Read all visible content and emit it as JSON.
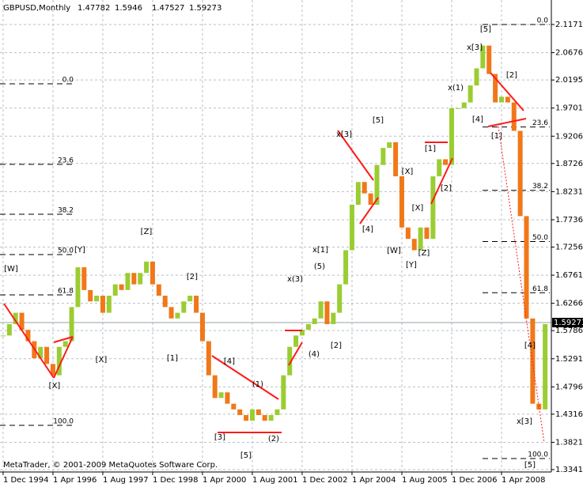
{
  "chart_data": {
    "type": "candlestick",
    "title": "GBPUSD,Monthly",
    "ohlc": [
      1.47782,
      1.5946,
      1.47527,
      1.59273
    ],
    "footer": "MetaTrader, © 2001-2009 MetaQuotes Software Corp.",
    "x": [
      "1994-12-01",
      "1995-02-01",
      "1995-04-01",
      "1995-06-01",
      "1995-08-01",
      "1995-10-01",
      "1995-12-01",
      "1996-02-01",
      "1996-04-01",
      "1996-06-01",
      "1996-08-01",
      "1996-10-01",
      "1996-12-01",
      "1997-02-01",
      "1997-04-01",
      "1997-06-01",
      "1997-08-01",
      "1997-10-01",
      "1997-12-01",
      "1998-02-01",
      "1998-04-01",
      "1998-06-01",
      "1998-08-01",
      "1998-10-01",
      "1998-12-01",
      "1999-02-01",
      "1999-04-01",
      "1999-06-01",
      "1999-08-01",
      "1999-10-01",
      "1999-12-01",
      "2000-02-01",
      "2000-04-01",
      "2000-06-01",
      "2000-08-01",
      "2000-10-01",
      "2000-12-01",
      "2001-02-01",
      "2001-04-01",
      "2001-06-01",
      "2001-08-01",
      "2001-10-01",
      "2001-12-01",
      "2002-02-01",
      "2002-04-01",
      "2002-06-01",
      "2002-08-01",
      "2002-10-01",
      "2002-12-01",
      "2003-02-01",
      "2003-04-01",
      "2003-06-01",
      "2003-08-01",
      "2003-10-01",
      "2003-12-01",
      "2004-02-01",
      "2004-04-01",
      "2004-06-01",
      "2004-08-01",
      "2004-10-01",
      "2004-12-01",
      "2005-02-01",
      "2005-04-01",
      "2005-06-01",
      "2005-08-01",
      "2005-10-01",
      "2005-12-01",
      "2006-02-01",
      "2006-04-01",
      "2006-06-01",
      "2006-08-01",
      "2006-10-01",
      "2006-12-01",
      "2007-02-01",
      "2007-04-01",
      "2007-06-01",
      "2007-08-01",
      "2007-10-01",
      "2007-12-01",
      "2008-02-01",
      "2008-04-01",
      "2008-06-01",
      "2008-08-01",
      "2008-10-01",
      "2008-12-01",
      "2009-02-01",
      "2009-04-01",
      "2009-06-01"
    ],
    "values": [
      1.57,
      1.59,
      1.61,
      1.58,
      1.56,
      1.53,
      1.55,
      1.52,
      1.5,
      1.55,
      1.56,
      1.62,
      1.69,
      1.65,
      1.63,
      1.64,
      1.61,
      1.64,
      1.66,
      1.65,
      1.68,
      1.66,
      1.68,
      1.7,
      1.66,
      1.64,
      1.62,
      1.6,
      1.61,
      1.63,
      1.64,
      1.61,
      1.56,
      1.5,
      1.46,
      1.47,
      1.45,
      1.44,
      1.43,
      1.42,
      1.44,
      1.43,
      1.42,
      1.43,
      1.44,
      1.5,
      1.55,
      1.57,
      1.58,
      1.59,
      1.6,
      1.63,
      1.59,
      1.61,
      1.66,
      1.72,
      1.8,
      1.84,
      1.82,
      1.8,
      1.87,
      1.9,
      1.91,
      1.85,
      1.76,
      1.74,
      1.72,
      1.76,
      1.74,
      1.85,
      1.88,
      1.87,
      1.97,
      1.97,
      1.98,
      2.01,
      2.04,
      2.08,
      2.03,
      1.98,
      1.99,
      1.98,
      1.93,
      1.78,
      1.6,
      1.45,
      1.44,
      1.59
    ],
    "up_color": "#9acd32",
    "down_color": "#f07818",
    "xlim": [
      "1994-11-01",
      "2009-08-01"
    ],
    "xticks": [
      {
        "value": "1994-12-01",
        "label": "1 Dec 1994"
      },
      {
        "value": "1996-04-01",
        "label": "1 Apr 1996"
      },
      {
        "value": "1997-08-01",
        "label": "1 Aug 1997"
      },
      {
        "value": "1998-12-01",
        "label": "1 Dec 1998"
      },
      {
        "value": "2000-04-01",
        "label": "1 Apr 2000"
      },
      {
        "value": "2001-08-01",
        "label": "1 Aug 2001"
      },
      {
        "value": "2002-12-01",
        "label": "1 Dec 2002"
      },
      {
        "value": "2004-04-01",
        "label": "1 Apr 2004"
      },
      {
        "value": "2005-08-01",
        "label": "1 Aug 2005"
      },
      {
        "value": "2006-12-01",
        "label": "1 Dec 2006"
      },
      {
        "value": "2008-04-01",
        "label": "1 Apr 2008"
      }
    ],
    "ylim": [
      1.3299,
      2.1602
    ],
    "yticks": [
      {
        "value": 2.1171,
        "label": "2.11710"
      },
      {
        "value": 2.0676,
        "label": "2.06760"
      },
      {
        "value": 2.0195,
        "label": "2.01950"
      },
      {
        "value": 1.9701,
        "label": "1.97010"
      },
      {
        "value": 1.9206,
        "label": "1.92060"
      },
      {
        "value": 1.8726,
        "label": "1.87260"
      },
      {
        "value": 1.8231,
        "label": "1.82310"
      },
      {
        "value": 1.7736,
        "label": "1.77360"
      },
      {
        "value": 1.7256,
        "label": "1.72560"
      },
      {
        "value": 1.6761,
        "label": "1.67610"
      },
      {
        "value": 1.6266,
        "label": "1.62660"
      },
      {
        "value": 1.5786,
        "label": "1.57860"
      },
      {
        "value": 1.5291,
        "label": "1.52910"
      },
      {
        "value": 1.4796,
        "label": "1.47960"
      },
      {
        "value": 1.4316,
        "label": "1.43160"
      },
      {
        "value": 1.3821,
        "label": "1.38210"
      },
      {
        "value": 1.3341,
        "label": "1.33410"
      }
    ],
    "current_price": 1.59273,
    "grid": true,
    "fibonacci": [
      {
        "high": 2.0128,
        "low": 1.412,
        "levels": [
          {
            "value": 0,
            "label": "0.0"
          },
          23.6,
          38.2,
          {
            "value": 50,
            "label": "50.0"
          },
          61.8,
          {
            "value": 100,
            "label": "100.0"
          }
        ]
      },
      {
        "high": 2.1171,
        "low": 1.3535,
        "levels": [
          {
            "value": 0,
            "label": "0.0"
          },
          23.6,
          38.2,
          {
            "value": 50,
            "label": "50.0"
          },
          61.8,
          {
            "value": 100,
            "label": "100.0"
          }
        ]
      }
    ],
    "annotations": [
      "[W]",
      "[X]",
      "[Y]",
      "[X]",
      "[Z]",
      "[1]",
      "[2]",
      "[4]",
      "[3]",
      "[5]",
      "(1)",
      "(2)",
      "x(3)",
      "(4)",
      "(5)",
      "x[1]",
      "[2]",
      "x[3]",
      "[4]",
      "[5]",
      "[W]",
      "[X]",
      "[Y]",
      "[X]",
      "[Z]",
      "[1]",
      "[2]",
      "x(1)",
      "[4]",
      "x[3]",
      "[5]",
      "[2]",
      "[1]",
      "[4]",
      "x[3]",
      "[5]"
    ]
  }
}
